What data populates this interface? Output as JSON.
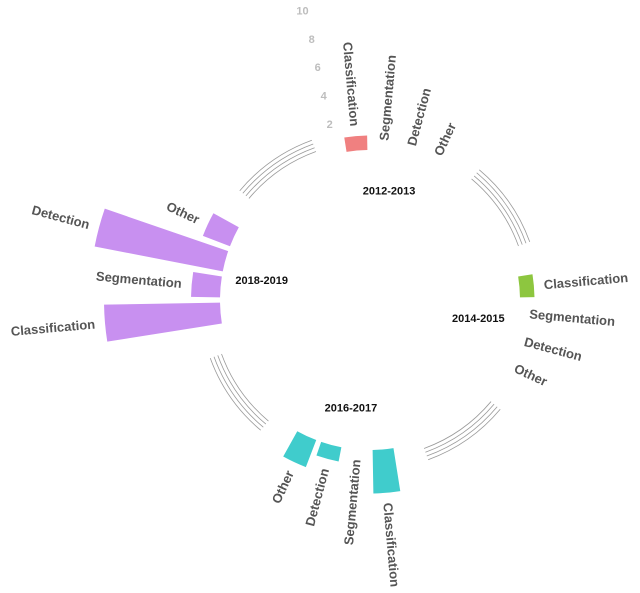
{
  "chart_data": {
    "type": "bar",
    "layout": "circular",
    "title": "",
    "xlabel": "",
    "ylabel": "",
    "ylim": [
      0,
      10
    ],
    "yticks": [
      2,
      4,
      6,
      8,
      10
    ],
    "grid": false,
    "legend": "none",
    "groups": [
      {
        "name": "2012-2013",
        "color": "#f08080",
        "categories": [
          "Classification",
          "Segmentation",
          "Detection",
          "Other"
        ],
        "values": [
          1,
          0,
          0,
          0
        ]
      },
      {
        "name": "2014-2015",
        "color": "#8dc63f",
        "categories": [
          "Classification",
          "Segmentation",
          "Detection",
          "Other"
        ],
        "values": [
          1,
          0,
          0,
          0
        ]
      },
      {
        "name": "2016-2017",
        "color": "#40cccc",
        "categories": [
          "Classification",
          "Segmentation",
          "Detection",
          "Other"
        ],
        "values": [
          3,
          0,
          1,
          2
        ]
      },
      {
        "name": "2018-2019",
        "color": "#c890f0",
        "categories": [
          "Classification",
          "Segmentation",
          "Detection",
          "Other"
        ],
        "values": [
          8,
          2,
          9,
          2
        ]
      }
    ]
  }
}
